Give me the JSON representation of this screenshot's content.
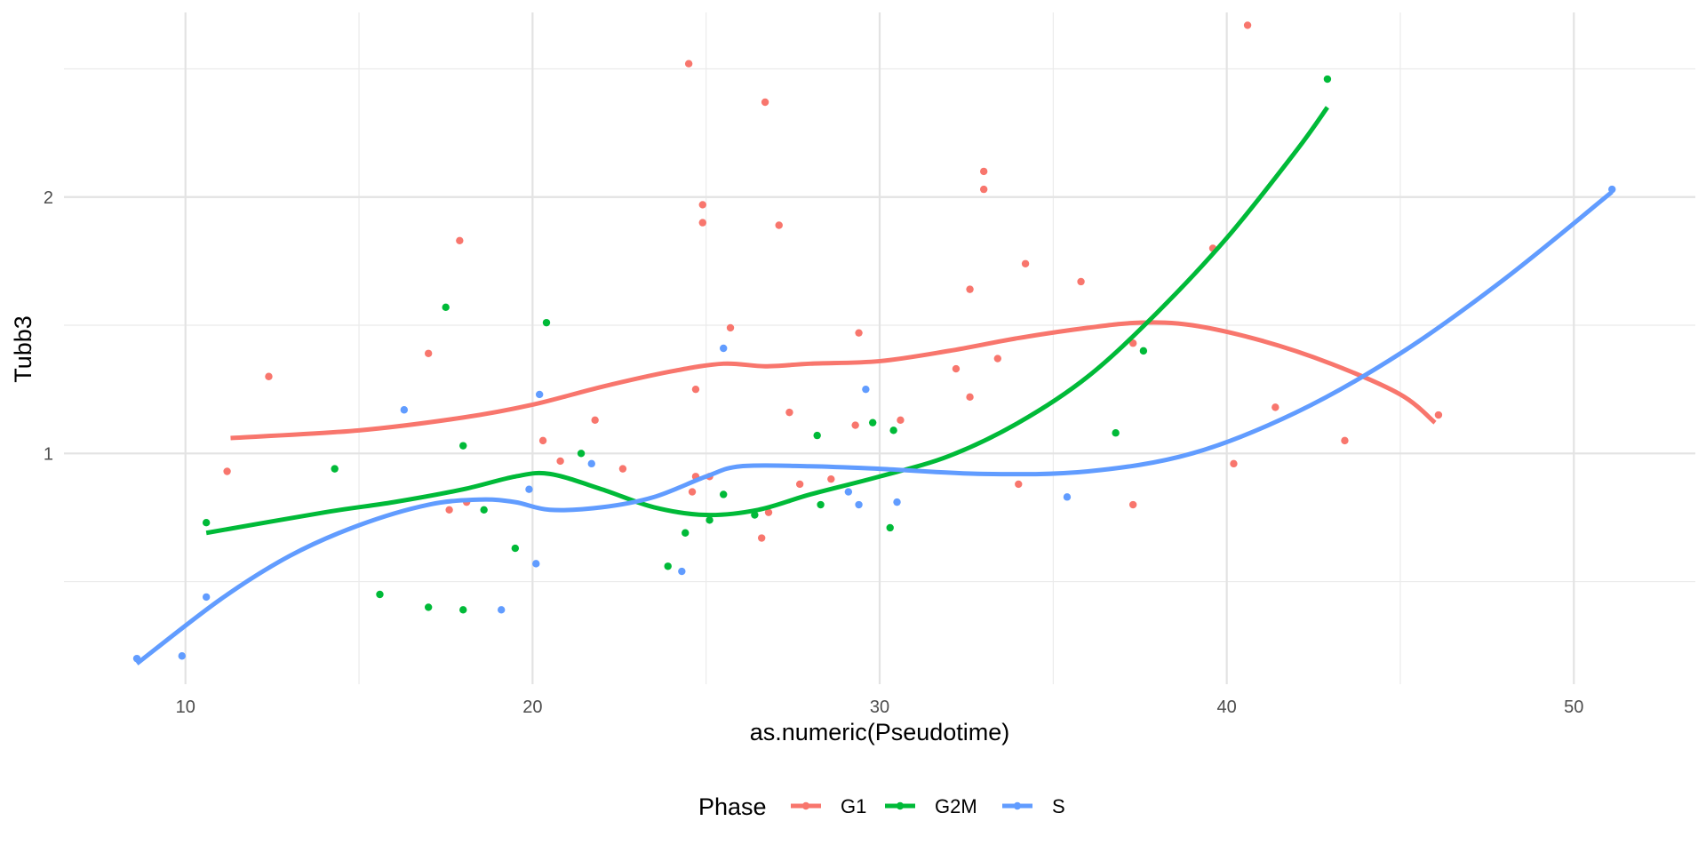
{
  "chart_data": {
    "type": "scatter",
    "title": "",
    "xlabel": "as.numeric(Pseudotime)",
    "ylabel": "Tubb3",
    "xlim": [
      6.5,
      53.5
    ],
    "ylim": [
      0.1,
      2.72
    ],
    "x_ticks": [
      10,
      20,
      30,
      40,
      50
    ],
    "y_ticks": [
      1,
      2
    ],
    "grid": true,
    "legend": {
      "title": "Phase",
      "position": "bottom"
    },
    "series": [
      {
        "name": "G1",
        "color": "#F8766D",
        "points": [
          [
            11.2,
            0.93
          ],
          [
            12.4,
            1.3
          ],
          [
            17.0,
            1.39
          ],
          [
            17.6,
            0.78
          ],
          [
            17.9,
            1.83
          ],
          [
            18.1,
            0.81
          ],
          [
            20.3,
            1.05
          ],
          [
            20.8,
            0.97
          ],
          [
            21.8,
            1.13
          ],
          [
            22.6,
            0.94
          ],
          [
            24.5,
            2.52
          ],
          [
            24.6,
            0.85
          ],
          [
            24.7,
            1.25
          ],
          [
            24.7,
            0.91
          ],
          [
            24.9,
            1.97
          ],
          [
            24.9,
            1.9
          ],
          [
            25.1,
            0.91
          ],
          [
            25.7,
            1.49
          ],
          [
            26.6,
            0.67
          ],
          [
            26.7,
            2.37
          ],
          [
            26.8,
            0.77
          ],
          [
            27.1,
            1.89
          ],
          [
            27.4,
            1.16
          ],
          [
            27.7,
            0.88
          ],
          [
            28.6,
            0.9
          ],
          [
            29.3,
            1.11
          ],
          [
            29.4,
            1.47
          ],
          [
            30.6,
            1.13
          ],
          [
            32.2,
            1.33
          ],
          [
            32.6,
            1.22
          ],
          [
            32.6,
            1.64
          ],
          [
            33.0,
            2.1
          ],
          [
            33.0,
            2.03
          ],
          [
            33.4,
            1.37
          ],
          [
            34.0,
            0.88
          ],
          [
            34.2,
            1.74
          ],
          [
            35.8,
            1.67
          ],
          [
            37.3,
            0.8
          ],
          [
            37.3,
            1.43
          ],
          [
            39.6,
            1.8
          ],
          [
            40.2,
            0.96
          ],
          [
            40.6,
            2.67
          ],
          [
            41.4,
            1.18
          ],
          [
            43.4,
            1.05
          ],
          [
            46.1,
            1.15
          ]
        ],
        "smooth": [
          [
            11.3,
            1.06
          ],
          [
            15,
            1.09
          ],
          [
            18,
            1.14
          ],
          [
            20,
            1.19
          ],
          [
            22,
            1.26
          ],
          [
            24,
            1.32
          ],
          [
            25.5,
            1.35
          ],
          [
            26.7,
            1.34
          ],
          [
            28,
            1.35
          ],
          [
            30,
            1.36
          ],
          [
            32,
            1.4
          ],
          [
            34,
            1.45
          ],
          [
            36,
            1.49
          ],
          [
            37.5,
            1.51
          ],
          [
            39,
            1.5
          ],
          [
            41,
            1.44
          ],
          [
            43,
            1.35
          ],
          [
            45,
            1.23
          ],
          [
            46,
            1.12
          ]
        ]
      },
      {
        "name": "G2M",
        "color": "#00BA38",
        "points": [
          [
            10.6,
            0.73
          ],
          [
            14.3,
            0.94
          ],
          [
            15.6,
            0.45
          ],
          [
            17.0,
            0.4
          ],
          [
            17.5,
            1.57
          ],
          [
            18.0,
            1.03
          ],
          [
            18.0,
            0.39
          ],
          [
            18.6,
            0.78
          ],
          [
            19.5,
            0.63
          ],
          [
            20.4,
            1.51
          ],
          [
            21.4,
            1.0
          ],
          [
            23.9,
            0.56
          ],
          [
            24.4,
            0.69
          ],
          [
            25.1,
            0.74
          ],
          [
            25.5,
            0.84
          ],
          [
            26.4,
            0.76
          ],
          [
            28.2,
            1.07
          ],
          [
            28.3,
            0.8
          ],
          [
            29.8,
            1.12
          ],
          [
            30.3,
            0.71
          ],
          [
            30.4,
            1.09
          ],
          [
            36.8,
            1.08
          ],
          [
            37.6,
            1.4
          ],
          [
            42.9,
            2.46
          ]
        ],
        "smooth": [
          [
            10.6,
            0.69
          ],
          [
            14,
            0.77
          ],
          [
            16,
            0.81
          ],
          [
            18,
            0.86
          ],
          [
            19.5,
            0.91
          ],
          [
            20.5,
            0.92
          ],
          [
            22,
            0.86
          ],
          [
            23.5,
            0.79
          ],
          [
            25,
            0.76
          ],
          [
            26.5,
            0.78
          ],
          [
            28,
            0.84
          ],
          [
            30,
            0.91
          ],
          [
            32,
            0.99
          ],
          [
            34,
            1.12
          ],
          [
            36,
            1.3
          ],
          [
            38,
            1.55
          ],
          [
            40,
            1.84
          ],
          [
            42,
            2.18
          ],
          [
            42.9,
            2.35
          ]
        ]
      },
      {
        "name": "S",
        "color": "#619CFF",
        "points": [
          [
            8.6,
            0.2
          ],
          [
            9.9,
            0.21
          ],
          [
            10.6,
            0.44
          ],
          [
            16.3,
            1.17
          ],
          [
            19.1,
            0.39
          ],
          [
            19.9,
            0.86
          ],
          [
            20.1,
            0.57
          ],
          [
            20.2,
            1.23
          ],
          [
            21.7,
            0.96
          ],
          [
            24.3,
            0.54
          ],
          [
            25.5,
            1.41
          ],
          [
            29.1,
            0.85
          ],
          [
            29.4,
            0.8
          ],
          [
            29.6,
            1.25
          ],
          [
            30.5,
            0.81
          ],
          [
            35.4,
            0.83
          ],
          [
            51.1,
            2.03
          ]
        ],
        "smooth": [
          [
            8.6,
            0.18
          ],
          [
            11,
            0.43
          ],
          [
            13,
            0.6
          ],
          [
            15,
            0.72
          ],
          [
            17,
            0.8
          ],
          [
            18.5,
            0.82
          ],
          [
            19.5,
            0.81
          ],
          [
            20.5,
            0.78
          ],
          [
            22,
            0.79
          ],
          [
            23.5,
            0.83
          ],
          [
            25,
            0.91
          ],
          [
            26,
            0.95
          ],
          [
            28,
            0.95
          ],
          [
            30,
            0.94
          ],
          [
            33,
            0.92
          ],
          [
            36,
            0.93
          ],
          [
            39,
            1.0
          ],
          [
            42,
            1.16
          ],
          [
            45,
            1.39
          ],
          [
            48,
            1.68
          ],
          [
            51.1,
            2.02
          ]
        ]
      }
    ]
  }
}
